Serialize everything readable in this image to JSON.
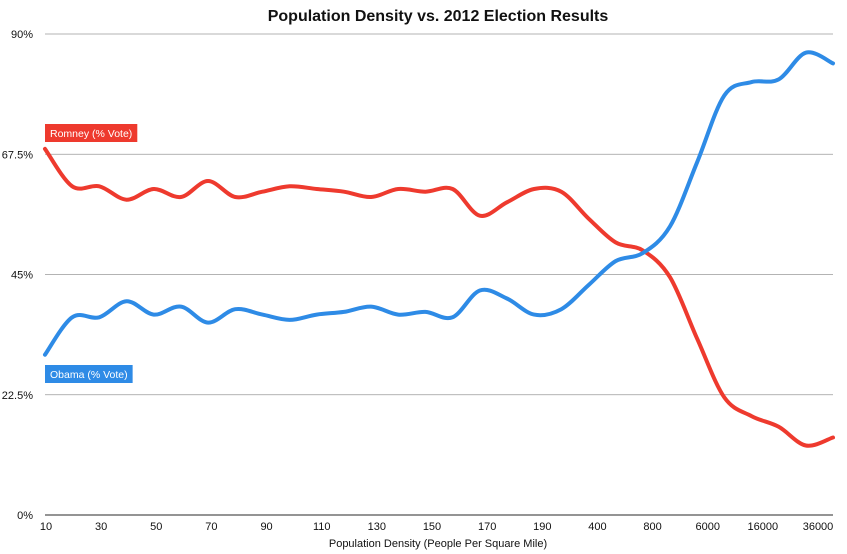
{
  "chart_data": {
    "type": "line",
    "title": "Population Density vs. 2012 Election Results",
    "xlabel": "Population Density (People Per Square Mile)",
    "ylabel": "",
    "x_ticks": [
      "10",
      "30",
      "50",
      "70",
      "90",
      "110",
      "130",
      "150",
      "170",
      "190",
      "400",
      "800",
      "6000",
      "16000",
      "36000"
    ],
    "y_ticks": [
      "0%",
      "22.5%",
      "45%",
      "67.5%",
      "90%"
    ],
    "ylim": [
      0,
      90
    ],
    "grid": true,
    "x": [
      "10",
      "20",
      "30",
      "40",
      "50",
      "60",
      "70",
      "80",
      "90",
      "100",
      "110",
      "120",
      "130",
      "140",
      "150",
      "160",
      "170",
      "180",
      "190",
      "200",
      "400",
      "600",
      "800",
      "1000",
      "6000",
      "8000",
      "16000",
      "26000",
      "36000",
      "46000"
    ],
    "series": [
      {
        "name": "Romney (% Vote)",
        "color": "#ee3a2e",
        "values": [
          68.5,
          61.5,
          61.5,
          59,
          61,
          59.5,
          62.5,
          59.5,
          60.5,
          61.5,
          61,
          60.5,
          59.5,
          61,
          60.5,
          61,
          56,
          58.5,
          61,
          60.5,
          55.5,
          51,
          49.5,
          44.5,
          33,
          22,
          18.5,
          16.5,
          13,
          14.5
        ]
      },
      {
        "name": "Obama (% Vote)",
        "color": "#2e8be6",
        "values": [
          30,
          37,
          37,
          40,
          37.5,
          39,
          36,
          38.5,
          37.5,
          36.5,
          37.5,
          38,
          39,
          37.5,
          38,
          37,
          42,
          40.5,
          37.5,
          38.5,
          43,
          47.5,
          49,
          54,
          66,
          78.5,
          81,
          81.5,
          86.5,
          84.5
        ]
      }
    ]
  }
}
